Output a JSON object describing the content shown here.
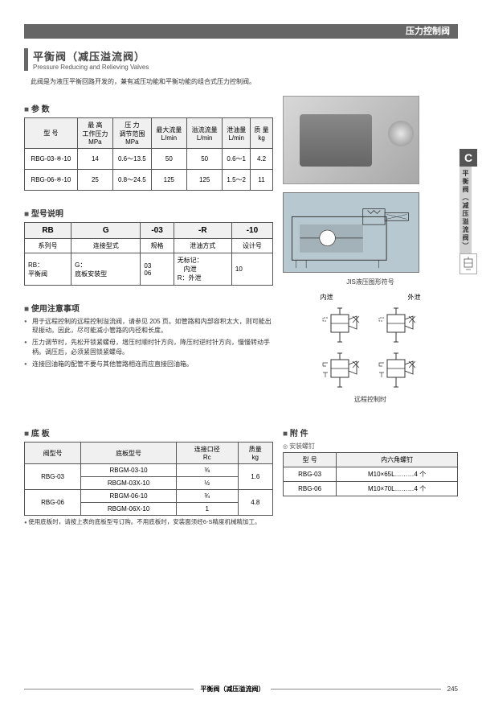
{
  "header": {
    "category": "压力控制阀"
  },
  "title": {
    "main": "平衡阀（减压溢流阀）",
    "sub": "Pressure Reducing and Relieving Valves"
  },
  "intro": "此阀是为液压平衡回路开发的，兼有减压功能和平衡功能的组合式压力控制阀。",
  "side_tab": {
    "letter": "C",
    "text": "平衡阀（减压溢流阀）"
  },
  "params": {
    "heading": "参 数",
    "columns": [
      "型 号",
      "最 高\n工作压力\nMPa",
      "压 力\n调节范围\nMPa",
      "最大流量\nL/min",
      "溢流流量\nL/min",
      "泄油量\nL/min",
      "质 量\nkg"
    ],
    "rows": [
      [
        "RBG-03-※-10",
        "14",
        "0.6～13.5",
        "50",
        "50",
        "0.6～1",
        "4.2"
      ],
      [
        "RBG-06-※-10",
        "25",
        "0.8～24.5",
        "125",
        "125",
        "1.5～2",
        "11"
      ]
    ]
  },
  "model_desc": {
    "heading": "型号说明",
    "header_row": [
      "RB",
      "G",
      "-03",
      "-R",
      "-10"
    ],
    "label_row": [
      "系列号",
      "连接型式",
      "规格",
      "泄油方式",
      "设计号"
    ],
    "detail_row": [
      "RB：\n平衡阀",
      "G：\n底板安装型",
      "03\n06",
      "无标记：\n　内泄\nR：外泄",
      "10"
    ]
  },
  "diagram_caption": "JIS液压图形符号",
  "sym_labels": {
    "left": "内泄",
    "right": "外泄"
  },
  "remote_caption": "远程控制时",
  "usage": {
    "heading": "使用注意事项",
    "items": [
      "用于远程控制的远程控制溢流阀，请参见 205 页。如管路和内部容积太大，则可能出现振动。因此，尽可能减小管路的内径和长度。",
      "压力调节时，先松开锁紧螺母，增压时顺时针方向，降压时逆时针方向，慢慢转动手柄。调压后，必须紧固锁紧螺母。",
      "连接回油箱的配管不要与其他管路相连而应直接回油箱。"
    ]
  },
  "baseplate": {
    "heading": "底 板",
    "columns": [
      "阀型号",
      "底板型号",
      "连接口径\nRc",
      "质量\nkg"
    ],
    "rows": [
      {
        "valve": "RBG-03",
        "plates": [
          [
            "RBGM-03-10",
            "⅜"
          ],
          [
            "RBGM-03X-10",
            "½"
          ]
        ],
        "weight": "1.6"
      },
      {
        "valve": "RBG-06",
        "plates": [
          [
            "RBGM-06-10",
            "¾"
          ],
          [
            "RBGM-06X-10",
            "1"
          ]
        ],
        "weight": "4.8"
      }
    ],
    "note": "使用底板时，请按上表的底板型号订购。不用底板时，安装面须经6-S精度机械精加工。"
  },
  "accessories": {
    "heading": "附 件",
    "sub": "安装螺钉",
    "columns": [
      "型 号",
      "内六角螺钉"
    ],
    "rows": [
      [
        "RBG-03",
        "M10×65L………4 个"
      ],
      [
        "RBG-06",
        "M10×70L………4 个"
      ]
    ]
  },
  "footer": {
    "text": "平衡阀（减压溢流阀）",
    "page": "245"
  }
}
